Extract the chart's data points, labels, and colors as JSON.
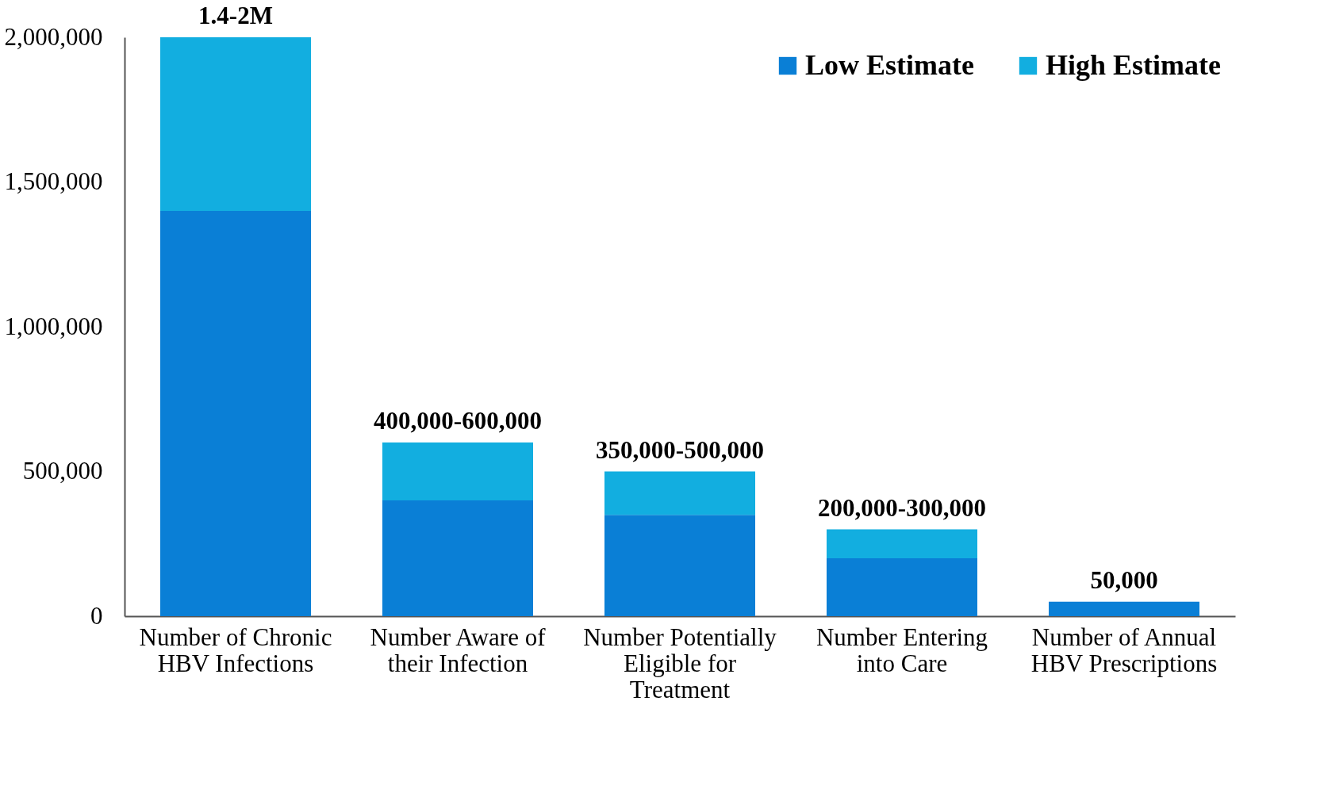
{
  "chart_data": {
    "type": "bar",
    "stacked": true,
    "categories": [
      "Number of Chronic HBV Infections",
      "Number Aware of their Infection",
      "Number Potentially Eligible for Treatment",
      "Number Entering into Care",
      "Number of Annual HBV Prescriptions"
    ],
    "series": [
      {
        "name": "Low Estimate",
        "color": "#0a7fd6",
        "values": [
          1400000,
          400000,
          350000,
          200000,
          50000
        ]
      },
      {
        "name": "High Estimate",
        "color": "#12aee0",
        "values": [
          600000,
          200000,
          150000,
          100000,
          null
        ]
      }
    ],
    "totals": [
      "1.4-2M",
      "400,000-600,000",
      "350,000-500,000",
      "200,000-300,000",
      "50,000"
    ],
    "ylim": [
      0,
      2000000
    ],
    "yticks": [
      0,
      {
        "value": 500000,
        "label": "500,000"
      },
      {
        "value": 1000000,
        "label": "1,000,000"
      },
      {
        "value": 1500000,
        "label": "1,500,000"
      },
      {
        "value": 2000000,
        "label": "2,000,000"
      }
    ],
    "grid": false,
    "legend": "top right"
  }
}
